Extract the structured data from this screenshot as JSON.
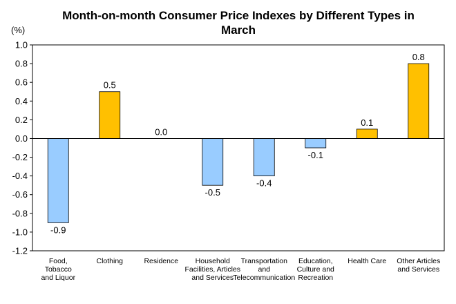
{
  "chart_data": {
    "type": "bar",
    "title_lines": [
      "Month-on-month Consumer Price Indexes by Different Types in",
      "March"
    ],
    "ylabel": "(%)",
    "xlabel": "",
    "ylim": [
      -1.2,
      1.0
    ],
    "yticks": [
      1.0,
      0.8,
      0.6,
      0.4,
      0.2,
      0.0,
      -0.2,
      -0.4,
      -0.6,
      -0.8,
      -1.0,
      -1.2
    ],
    "ytick_labels": [
      "1.0",
      "0.8",
      "0.6",
      "0.4",
      "0.2",
      "0.0",
      "-0.2",
      "-0.4",
      "-0.6",
      "-0.8",
      "-1.0",
      "-1.2"
    ],
    "categories": [
      [
        "Food,",
        "Tobacco",
        "and Liquor"
      ],
      [
        "Clothing"
      ],
      [
        "Residence"
      ],
      [
        "Household",
        "Facilities, Articles",
        "and Services"
      ],
      [
        "Transportation",
        "and",
        "Telecommunication"
      ],
      [
        "Education,",
        "Culture and",
        "Recreation"
      ],
      [
        "Health Care"
      ],
      [
        "Other Articles",
        "and Services"
      ]
    ],
    "values": [
      -0.9,
      0.5,
      0.0,
      -0.5,
      -0.4,
      -0.1,
      0.1,
      0.8
    ],
    "value_labels": [
      "-0.9",
      "0.5",
      "0.0",
      "-0.5",
      "-0.4",
      "-0.1",
      "0.1",
      "0.8"
    ],
    "colors": {
      "positive": "#FFC000",
      "negative": "#99CCFF",
      "edge": "#000000"
    },
    "grid": false,
    "legend": "none"
  }
}
